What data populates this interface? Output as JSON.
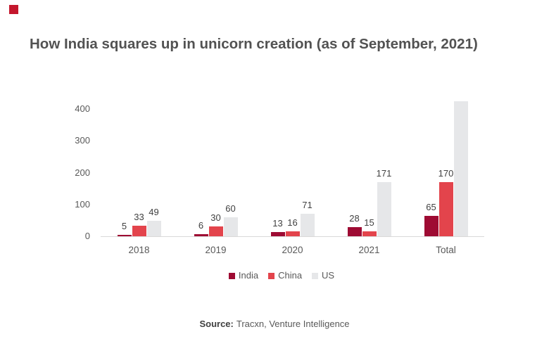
{
  "page": {
    "brand_mark_color": "#c4172d",
    "background": "#ffffff",
    "title": "How India squares up in unicorn creation (as of September, 2021)",
    "source_label": "Source:",
    "source_text": "Tracxn, Venture Intelligence"
  },
  "chart_data": {
    "type": "bar",
    "title": "How India squares up in unicorn creation (as of September, 2021)",
    "categories": [
      "2018",
      "2019",
      "2020",
      "2021",
      "Total"
    ],
    "series": [
      {
        "name": "India",
        "color": "#9e0b33",
        "values": [
          5,
          6,
          13,
          28,
          65
        ],
        "labels": [
          "5",
          "6",
          "13",
          "28",
          "65"
        ]
      },
      {
        "name": "China",
        "color": "#e3444c",
        "values": [
          33,
          30,
          16,
          15,
          170
        ],
        "labels": [
          "33",
          "30",
          "16",
          "15",
          "170"
        ]
      },
      {
        "name": "US",
        "color": "#e6e7e9",
        "values": [
          49,
          60,
          71,
          171,
          424
        ],
        "labels": [
          "49",
          "60",
          "71",
          "171",
          ""
        ]
      }
    ],
    "y_ticks": [
      0,
      100,
      200,
      300,
      400
    ],
    "ylim": [
      0,
      450
    ],
    "xlabel": "",
    "ylabel": "",
    "grid": false,
    "data_labels": true,
    "legend_position": "bottom",
    "legend": [
      "India",
      "China",
      "US"
    ]
  }
}
